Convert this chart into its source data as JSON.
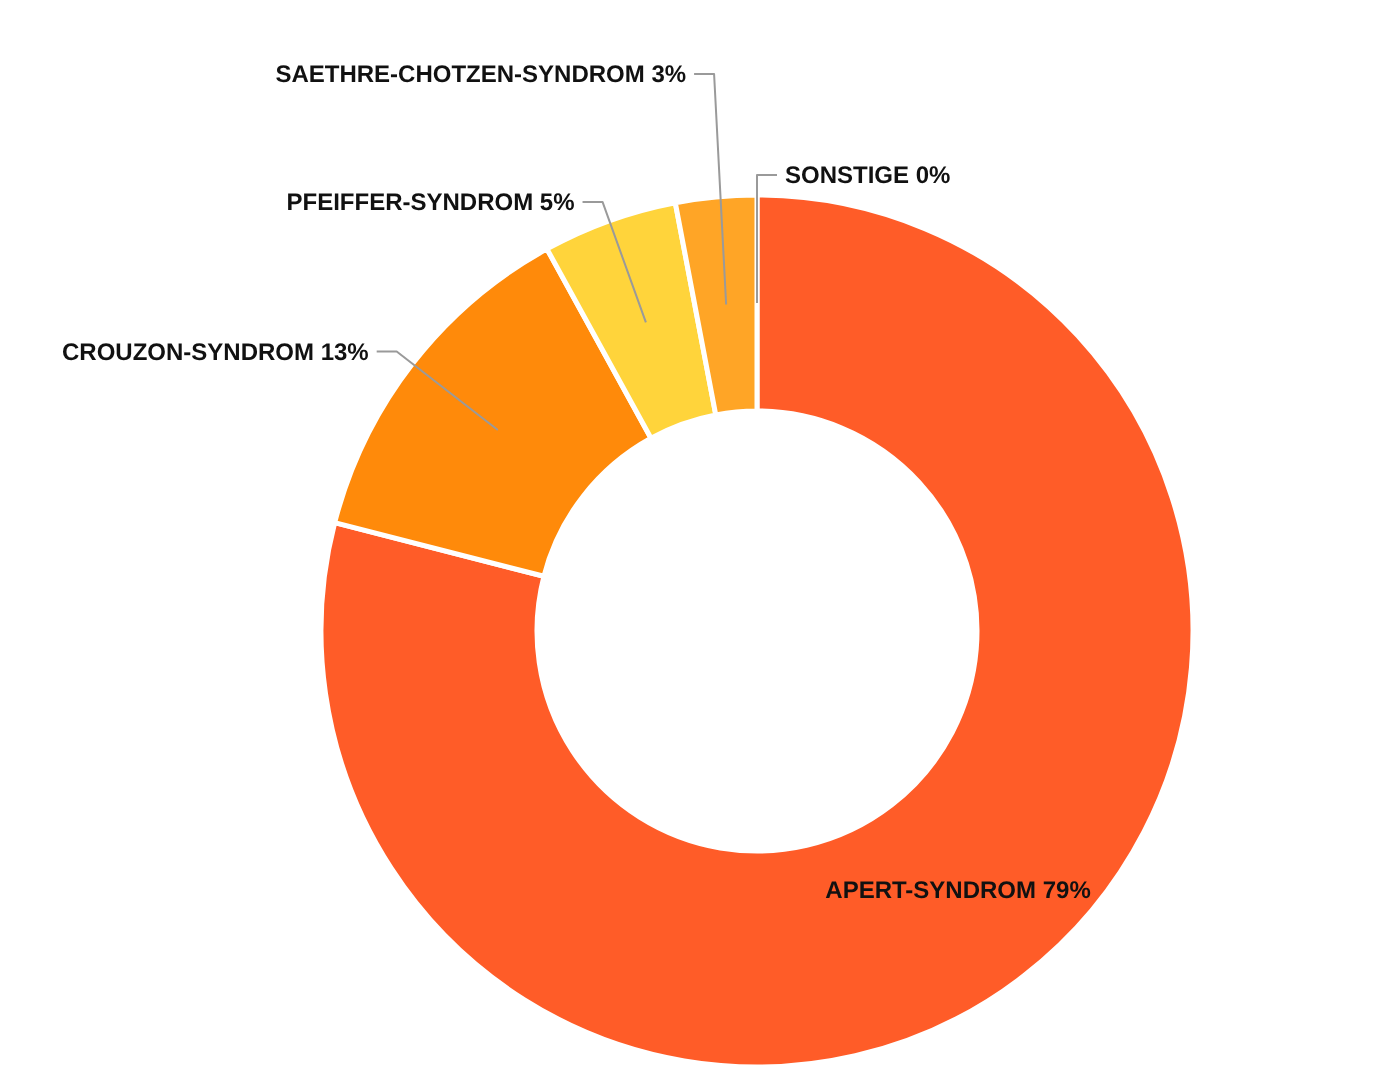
{
  "chart_data": {
    "type": "donut",
    "categories": [
      "APERT-SYNDROM",
      "CROUZON-SYNDROM",
      "PFEIFFER-SYNDROM",
      "SAETHRE-CHOTZEN-SYNDROM",
      "SONSTIGE"
    ],
    "values": [
      79,
      13,
      5,
      3,
      0
    ],
    "value_labels": [
      "79%",
      "13%",
      "5%",
      "3%",
      "0%"
    ],
    "colors": [
      "#ff5c28",
      "#ff8a0a",
      "#ffd43b",
      "#ffa526",
      null
    ]
  }
}
